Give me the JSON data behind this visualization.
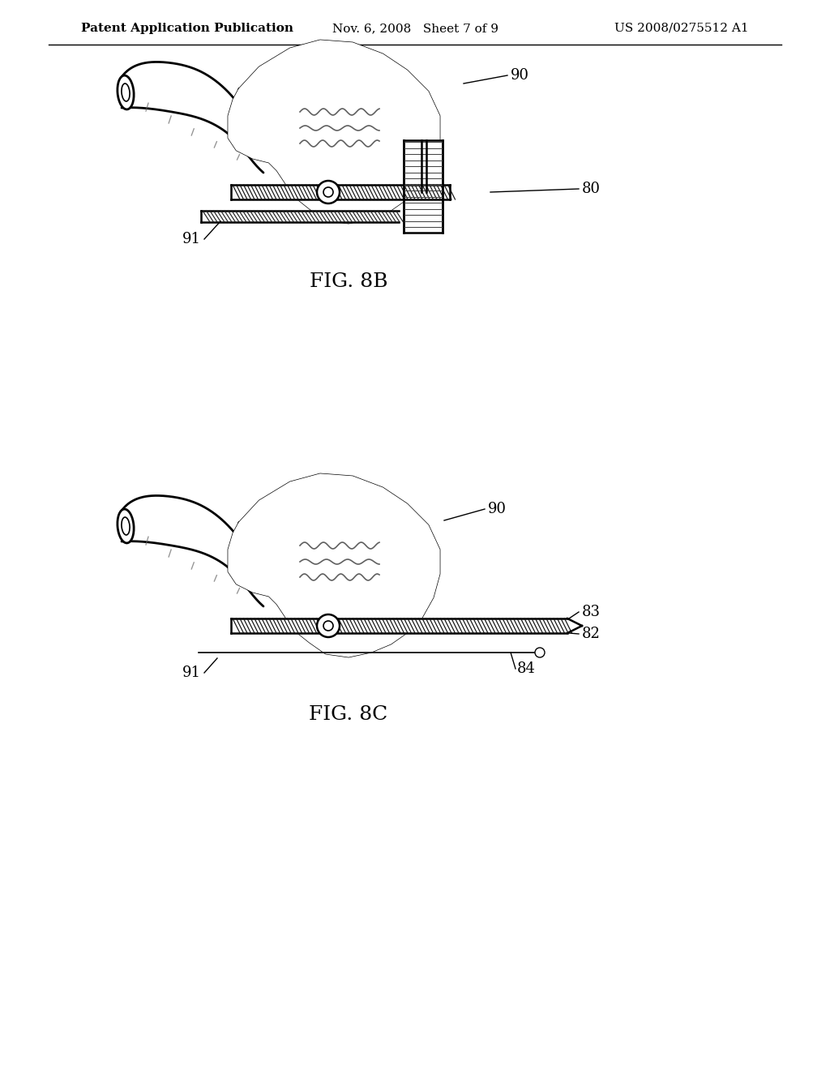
{
  "background_color": "#ffffff",
  "header_left": "Patent Application Publication",
  "header_mid": "Nov. 6, 2008   Sheet 7 of 9",
  "header_right": "US 2008/0275512 A1",
  "header_fontsize": 11,
  "fig_label_8b": "FIG. 8B",
  "fig_label_8c": "FIG. 8C",
  "fig_label_fontsize": 18,
  "annotation_fontsize": 13
}
